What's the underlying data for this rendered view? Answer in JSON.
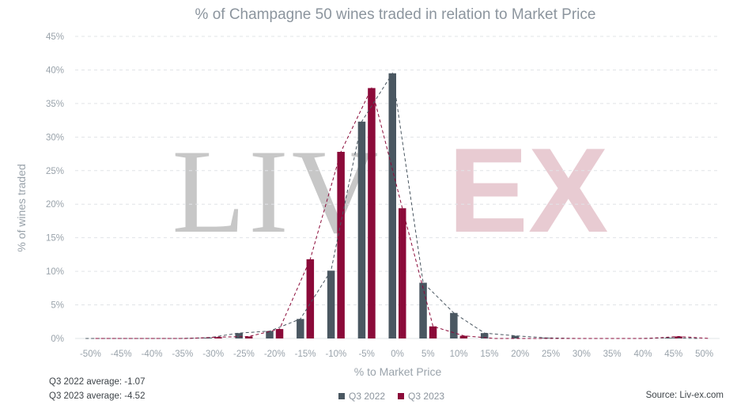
{
  "chart_data": {
    "type": "bar",
    "title": "% of Champagne 50 wines traded in relation to Market Price",
    "xlabel": "% to Market Price",
    "ylabel": "% of wines traded",
    "categories": [
      "-50%",
      "-45%",
      "-40%",
      "-35%",
      "-30%",
      "-25%",
      "-20%",
      "-15%",
      "-10%",
      "-5%",
      "0%",
      "5%",
      "10%",
      "15%",
      "20%",
      "25%",
      "30%",
      "35%",
      "40%",
      "45%",
      "50%"
    ],
    "series": [
      {
        "name": "Q3 2022",
        "color": "#4a5761",
        "values": [
          0,
          0,
          0,
          0,
          0.1,
          0.8,
          1.1,
          2.9,
          10.1,
          32.3,
          39.5,
          8.3,
          3.8,
          0.8,
          0.4,
          0.1,
          0,
          0,
          0,
          0.1,
          0
        ]
      },
      {
        "name": "Q3 2023",
        "color": "#8b0a39",
        "values": [
          0,
          0,
          0,
          0,
          0.2,
          0.3,
          1.4,
          11.8,
          27.8,
          37.3,
          19.4,
          1.8,
          0.4,
          0,
          0,
          0,
          0,
          0,
          0,
          0.3,
          0
        ]
      }
    ],
    "ylim": [
      0,
      45
    ],
    "yticks": [
      "0%",
      "5%",
      "10%",
      "15%",
      "20%",
      "25%",
      "30%",
      "35%",
      "40%",
      "45%"
    ],
    "grid": true,
    "trendlines": "dashed, one per series",
    "legend_position": "bottom-center"
  },
  "watermark": {
    "left": "LIV",
    "right": "EX"
  },
  "notes": {
    "avg_2022": "Q3 2022 average: -1.07",
    "avg_2023": "Q3 2023 average: -4.52"
  },
  "source": "Source: Liv-ex.com"
}
